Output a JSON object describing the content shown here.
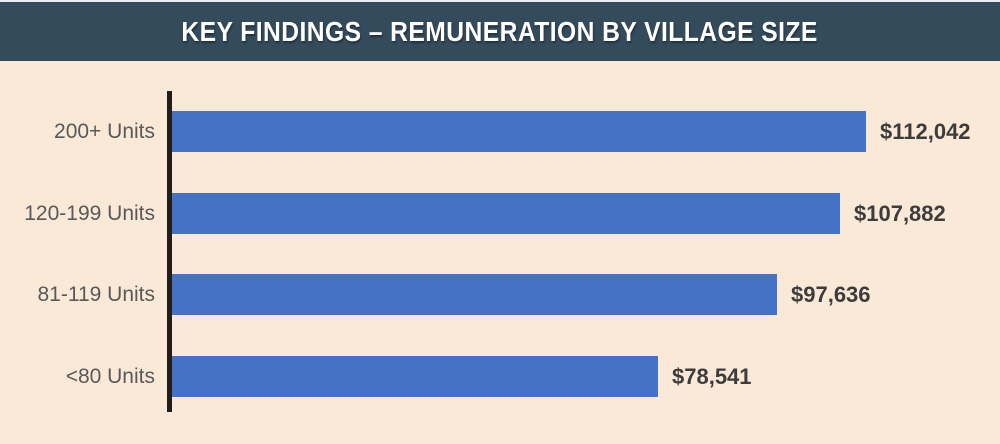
{
  "header": {
    "title": "KEY FINDINGS – REMUNERATION BY VILLAGE SIZE",
    "background_color": "#344b5c",
    "text_color": "#ffffff"
  },
  "chart_data": {
    "type": "bar",
    "orientation": "horizontal",
    "title": "KEY FINDINGS – REMUNERATION BY VILLAGE SIZE",
    "categories": [
      "200+ Units",
      "120-199 Units",
      "81-119 Units",
      "<80 Units"
    ],
    "values": [
      112042,
      107882,
      97636,
      78541
    ],
    "value_labels": [
      "$112,042",
      "$107,882",
      "$97,636",
      "$78,541"
    ],
    "xlim": [
      0,
      112042
    ],
    "xlabel": "",
    "ylabel": "",
    "grid": false,
    "legend": false,
    "bar_color": "#4472c4",
    "axis_color": "#211d1a",
    "background_color": "#fbe9d8",
    "category_label_color": "#595959",
    "value_label_color": "#3c3c3c"
  }
}
